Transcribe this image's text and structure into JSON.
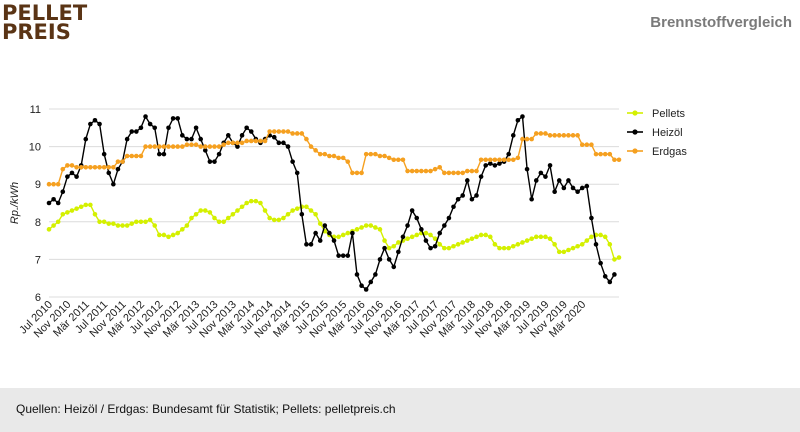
{
  "header": {
    "logo_line1": "PELLET",
    "logo_line2": "PREIS",
    "title": "Brennstoffvergleich"
  },
  "footer": {
    "source_text": "Quellen: Heizöl / Erdgas: Bundesamt für Statistik; Pellets: pelletpreis.ch"
  },
  "colors": {
    "pellets": "#d4f000",
    "heizoel": "#000000",
    "erdgas": "#f5a020",
    "grid": "#dcdcdc",
    "logo": "#5a3415",
    "footer_bg": "#e9e9e9"
  },
  "chart_data": {
    "type": "line",
    "ylabel": "Rp./kWh",
    "ylim": [
      6,
      11
    ],
    "yticks": [
      6,
      7,
      8,
      9,
      10,
      11
    ],
    "grid": true,
    "legend_position": "right",
    "x_start": "Jul 2010",
    "x_end": "Mai 2020",
    "x_ticks": [
      "Jul 2010",
      "Nov 2010",
      "Mär 2011",
      "Jul 2011",
      "Nov 2011",
      "Mär 2012",
      "Jul 2012",
      "Nov 2012",
      "Mär 2013",
      "Jul 2013",
      "Nov 2013",
      "Mär 2014",
      "Jul 2014",
      "Nov 2014",
      "Mär 2015",
      "Jul 2015",
      "Nov 2015",
      "Mär 2016",
      "Jul 2016",
      "Nov 2016",
      "Mär 2017",
      "Jul 2017",
      "Nov 2017",
      "Mär 2018",
      "Jul 2018",
      "Nov 2018",
      "Mär 2019",
      "Jul 2019",
      "Nov 2019",
      "Mär 2020"
    ],
    "series": [
      {
        "name": "Pellets",
        "color_key": "pellets",
        "values": [
          7.8,
          7.9,
          8.0,
          8.2,
          8.25,
          8.3,
          8.35,
          8.4,
          8.45,
          8.45,
          8.2,
          8.0,
          8.0,
          7.95,
          7.95,
          7.9,
          7.9,
          7.9,
          7.95,
          8.0,
          8.0,
          8.0,
          8.05,
          7.9,
          7.65,
          7.65,
          7.6,
          7.65,
          7.7,
          7.8,
          7.9,
          8.1,
          8.2,
          8.3,
          8.3,
          8.25,
          8.1,
          8.0,
          8.0,
          8.1,
          8.2,
          8.3,
          8.4,
          8.5,
          8.55,
          8.55,
          8.5,
          8.3,
          8.1,
          8.05,
          8.05,
          8.1,
          8.2,
          8.3,
          8.35,
          8.4,
          8.4,
          8.3,
          8.2,
          7.95,
          7.75,
          7.65,
          7.6,
          7.6,
          7.65,
          7.7,
          7.75,
          7.8,
          7.85,
          7.9,
          7.9,
          7.85,
          7.8,
          7.5,
          7.3,
          7.35,
          7.45,
          7.5,
          7.55,
          7.6,
          7.65,
          7.7,
          7.7,
          7.65,
          7.55,
          7.4,
          7.3,
          7.3,
          7.35,
          7.4,
          7.45,
          7.5,
          7.55,
          7.6,
          7.65,
          7.65,
          7.6,
          7.4,
          7.3,
          7.3,
          7.3,
          7.35,
          7.4,
          7.45,
          7.5,
          7.55,
          7.6,
          7.6,
          7.6,
          7.55,
          7.4,
          7.2,
          7.2,
          7.25,
          7.3,
          7.35,
          7.4,
          7.5,
          7.6,
          7.65,
          7.65,
          7.6,
          7.4,
          7.0,
          7.05
        ]
      },
      {
        "name": "Heizöl",
        "color_key": "heizoel",
        "values": [
          8.5,
          8.6,
          8.5,
          8.8,
          9.2,
          9.3,
          9.2,
          9.5,
          10.2,
          10.6,
          10.7,
          10.6,
          9.8,
          9.3,
          9.0,
          9.4,
          9.6,
          10.2,
          10.4,
          10.4,
          10.5,
          10.8,
          10.6,
          10.5,
          9.8,
          9.8,
          10.5,
          10.75,
          10.75,
          10.3,
          10.2,
          10.2,
          10.5,
          10.2,
          9.9,
          9.6,
          9.6,
          9.8,
          10.1,
          10.3,
          10.1,
          10.0,
          10.3,
          10.5,
          10.4,
          10.2,
          10.1,
          10.2,
          10.3,
          10.25,
          10.1,
          10.1,
          10.0,
          9.6,
          9.3,
          8.2,
          7.4,
          7.4,
          7.7,
          7.5,
          7.9,
          7.7,
          7.5,
          7.1,
          7.1,
          7.1,
          7.7,
          6.6,
          6.3,
          6.2,
          6.4,
          6.6,
          7.0,
          7.3,
          7.0,
          6.8,
          7.2,
          7.6,
          7.9,
          8.3,
          8.1,
          7.8,
          7.5,
          7.3,
          7.35,
          7.7,
          7.9,
          8.1,
          8.4,
          8.6,
          8.7,
          9.1,
          8.6,
          8.7,
          9.2,
          9.5,
          9.55,
          9.5,
          9.55,
          9.6,
          9.8,
          10.3,
          10.7,
          10.8,
          9.4,
          8.6,
          9.1,
          9.3,
          9.2,
          9.5,
          8.8,
          9.1,
          8.9,
          9.1,
          8.9,
          8.8,
          8.9,
          8.95,
          8.1,
          7.4,
          6.9,
          6.55,
          6.4,
          6.6
        ]
      },
      {
        "name": "Erdgas",
        "color_key": "erdgas",
        "values": [
          9.0,
          9.0,
          9.0,
          9.4,
          9.5,
          9.5,
          9.45,
          9.45,
          9.45,
          9.45,
          9.45,
          9.45,
          9.45,
          9.45,
          9.45,
          9.6,
          9.6,
          9.75,
          9.75,
          9.75,
          9.75,
          10.0,
          10.0,
          10.0,
          10.0,
          10.0,
          10.0,
          10.0,
          10.0,
          10.0,
          10.05,
          10.05,
          10.05,
          10.0,
          10.0,
          10.0,
          10.0,
          10.0,
          10.05,
          10.1,
          10.1,
          10.1,
          10.1,
          10.15,
          10.15,
          10.15,
          10.15,
          10.15,
          10.4,
          10.4,
          10.4,
          10.4,
          10.4,
          10.35,
          10.35,
          10.35,
          10.2,
          10.0,
          9.9,
          9.8,
          9.8,
          9.75,
          9.75,
          9.7,
          9.7,
          9.6,
          9.3,
          9.3,
          9.3,
          9.8,
          9.8,
          9.8,
          9.75,
          9.75,
          9.7,
          9.65,
          9.65,
          9.65,
          9.35,
          9.35,
          9.35,
          9.35,
          9.35,
          9.35,
          9.4,
          9.45,
          9.3,
          9.3,
          9.3,
          9.3,
          9.3,
          9.35,
          9.35,
          9.35,
          9.65,
          9.65,
          9.65,
          9.65,
          9.65,
          9.65,
          9.65,
          9.65,
          9.7,
          10.2,
          10.2,
          10.2,
          10.35,
          10.35,
          10.35,
          10.3,
          10.3,
          10.3,
          10.3,
          10.3,
          10.3,
          10.3,
          10.05,
          10.05,
          10.05,
          9.8,
          9.8,
          9.8,
          9.8,
          9.65,
          9.65
        ]
      }
    ]
  }
}
